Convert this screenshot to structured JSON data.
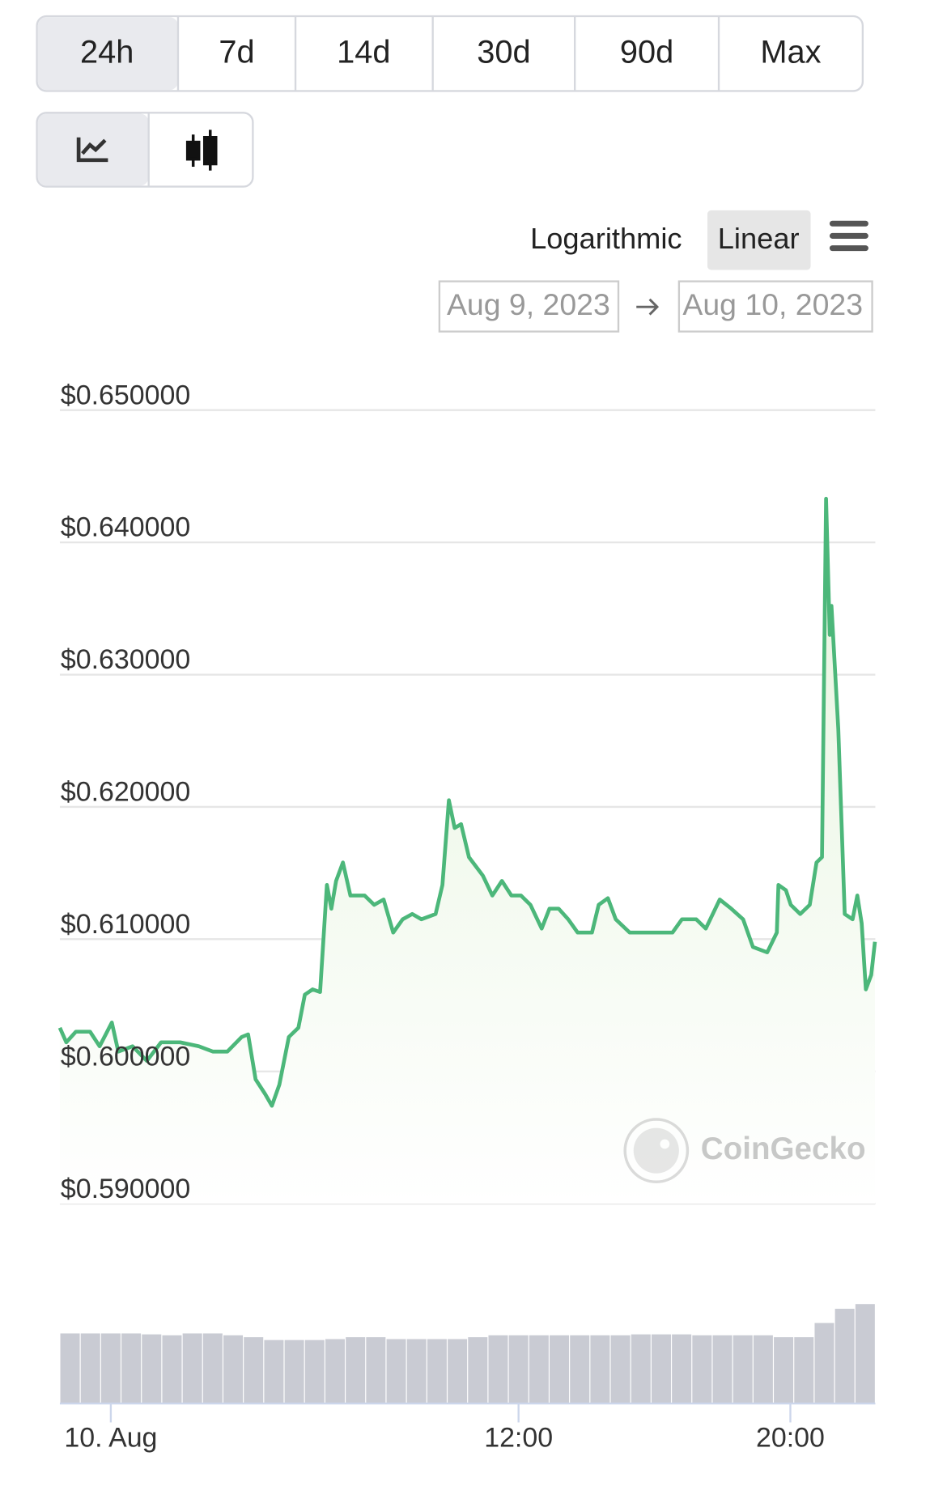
{
  "ui": {
    "ranges": [
      "24h",
      "7d",
      "14d",
      "30d",
      "90d",
      "Max"
    ],
    "scale_options": [
      "Logarithmic",
      "Linear"
    ],
    "date_from": "Aug 9, 2023",
    "date_to": "Aug 10, 2023",
    "watermark": "CoinGecko"
  },
  "chart_data": [
    {
      "type": "line",
      "color": "#4cb77a",
      "grid": true,
      "xlim": [
        -1.5,
        22.5
      ],
      "xticks": [
        {
          "value": 0,
          "label": "10. Aug"
        },
        {
          "value": 12,
          "label": "12:00"
        },
        {
          "value": 20,
          "label": "20:00"
        }
      ],
      "ylim": [
        0.59,
        0.65
      ],
      "yticks": [
        {
          "value": 0.59,
          "label": "$0.590000"
        },
        {
          "value": 0.6,
          "label": "$0.600000"
        },
        {
          "value": 0.61,
          "label": "$0.610000"
        },
        {
          "value": 0.62,
          "label": "$0.620000"
        },
        {
          "value": 0.63,
          "label": "$0.630000"
        },
        {
          "value": 0.64,
          "label": "$0.640000"
        },
        {
          "value": 0.65,
          "label": "$0.650000"
        }
      ],
      "x": [
        -1.5,
        -1.31,
        -1.03,
        -0.61,
        -0.33,
        0.03,
        0.22,
        0.64,
        1.06,
        1.48,
        2.04,
        2.59,
        3.01,
        3.43,
        3.85,
        4.04,
        4.26,
        4.54,
        4.74,
        4.96,
        5.24,
        5.52,
        5.71,
        5.94,
        6.16,
        6.36,
        6.49,
        6.63,
        6.83,
        7.05,
        7.47,
        7.75,
        8.03,
        8.31,
        8.59,
        8.87,
        9.14,
        9.56,
        9.76,
        9.95,
        10.12,
        10.31,
        10.54,
        10.95,
        11.23,
        11.51,
        11.79,
        12.07,
        12.35,
        12.68,
        12.91,
        13.18,
        13.46,
        13.74,
        14.16,
        14.36,
        14.63,
        14.86,
        15.27,
        15.69,
        16.11,
        16.53,
        16.81,
        17.23,
        17.51,
        17.92,
        18.26,
        18.61,
        18.9,
        19.32,
        19.6,
        19.65,
        19.87,
        20.01,
        20.29,
        20.57,
        20.77,
        20.93,
        21.05,
        21.16,
        21.21,
        21.41,
        21.6,
        21.83,
        21.97,
        22.1,
        22.22,
        22.38,
        22.49
      ],
      "values": [
        0.6033,
        0.6022,
        0.603,
        0.603,
        0.6019,
        0.6037,
        0.6015,
        0.6019,
        0.6008,
        0.6022,
        0.6022,
        0.6019,
        0.6015,
        0.6015,
        0.6026,
        0.6028,
        0.5994,
        0.5983,
        0.5974,
        0.599,
        0.6026,
        0.6033,
        0.6058,
        0.6062,
        0.606,
        0.6141,
        0.6123,
        0.6144,
        0.6158,
        0.6133,
        0.6133,
        0.6126,
        0.613,
        0.6105,
        0.6115,
        0.6119,
        0.6115,
        0.6119,
        0.6141,
        0.6205,
        0.6184,
        0.6187,
        0.6162,
        0.6148,
        0.6133,
        0.6144,
        0.6133,
        0.6133,
        0.6126,
        0.6108,
        0.6123,
        0.6123,
        0.6115,
        0.6105,
        0.6105,
        0.6126,
        0.6131,
        0.6115,
        0.6105,
        0.6105,
        0.6105,
        0.6105,
        0.6115,
        0.6115,
        0.6108,
        0.613,
        0.6123,
        0.6115,
        0.6094,
        0.609,
        0.6105,
        0.6141,
        0.6137,
        0.6126,
        0.6119,
        0.6126,
        0.6158,
        0.6162,
        0.6433,
        0.633,
        0.6352,
        0.6259,
        0.6119,
        0.6115,
        0.6133,
        0.6112,
        0.6062,
        0.6073,
        0.6098
      ]
    },
    {
      "type": "bar",
      "color": "#c9cbd3",
      "values": [
        74,
        74,
        74,
        74,
        73,
        72,
        74,
        74,
        72,
        70,
        67,
        67,
        67,
        68,
        70,
        70,
        68,
        68,
        68,
        68,
        70,
        72,
        72,
        72,
        72,
        72,
        72,
        72,
        73,
        73,
        73,
        72,
        72,
        72,
        72,
        70,
        70,
        85,
        100,
        105
      ]
    }
  ]
}
